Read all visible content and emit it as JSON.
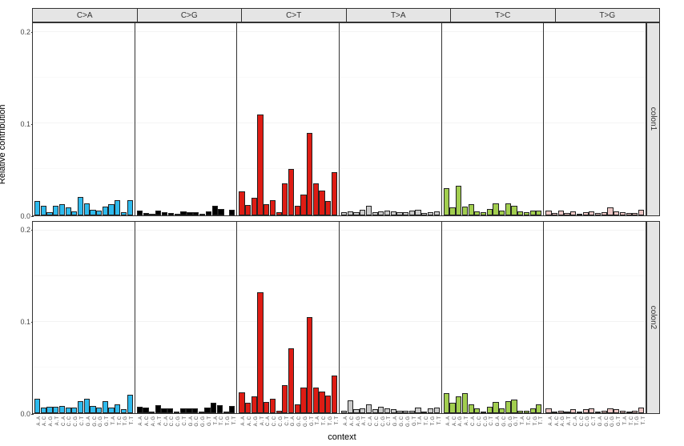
{
  "title": {
    "y_label": "Relative contribution",
    "x_label": "context"
  },
  "layout": {
    "ylim": [
      0,
      0.21
    ],
    "yticks": [
      0.0,
      0.1,
      0.2
    ],
    "grid_major_color": "#f3f3f3",
    "grid_minor_color": "#f9f9f9",
    "background_color": "#ffffff",
    "panel_border": "#333333",
    "strip_background": "#e5e5e5",
    "bar_border": "#222222"
  },
  "x_categories": [
    "A.A",
    "A.C",
    "A.G",
    "A.T",
    "C.A",
    "C.C",
    "C.G",
    "C.T",
    "G.A",
    "G.C",
    "G.G",
    "G.T",
    "T.A",
    "T.C",
    "T.G",
    "T.T"
  ],
  "col_facets": [
    {
      "label": "C>A",
      "color": "#2ebaed"
    },
    {
      "label": "C>G",
      "color": "#000000"
    },
    {
      "label": "C>T",
      "color": "#de1c14"
    },
    {
      "label": "T>A",
      "color": "#cacaca"
    },
    {
      "label": "T>C",
      "color": "#a2ce4f"
    },
    {
      "label": "T>G",
      "color": "#ecc6c4"
    }
  ],
  "row_facets": [
    {
      "label": "colon1"
    },
    {
      "label": "colon2"
    }
  ],
  "data": {
    "colon1": {
      "C>A": [
        0.015,
        0.01,
        0.003,
        0.01,
        0.012,
        0.008,
        0.004,
        0.02,
        0.013,
        0.006,
        0.005,
        0.009,
        0.012,
        0.016,
        0.003,
        0.016
      ],
      "C>G": [
        0.005,
        0.002,
        0.001,
        0.005,
        0.003,
        0.002,
        0.001,
        0.004,
        0.003,
        0.003,
        0.001,
        0.004,
        0.01,
        0.007,
        0.0,
        0.006
      ],
      "C>T": [
        0.026,
        0.011,
        0.019,
        0.11,
        0.012,
        0.016,
        0.003,
        0.035,
        0.05,
        0.01,
        0.022,
        0.09,
        0.035,
        0.027,
        0.015,
        0.047
      ],
      "T>A": [
        0.003,
        0.004,
        0.003,
        0.006,
        0.01,
        0.003,
        0.004,
        0.005,
        0.004,
        0.003,
        0.003,
        0.005,
        0.006,
        0.002,
        0.003,
        0.004
      ],
      "T>C": [
        0.029,
        0.008,
        0.032,
        0.009,
        0.012,
        0.004,
        0.003,
        0.007,
        0.013,
        0.005,
        0.013,
        0.01,
        0.004,
        0.003,
        0.005,
        0.005
      ],
      "T>G": [
        0.005,
        0.002,
        0.005,
        0.002,
        0.004,
        0.001,
        0.003,
        0.004,
        0.002,
        0.003,
        0.008,
        0.004,
        0.003,
        0.002,
        0.002,
        0.006
      ]
    },
    "colon2": {
      "C>A": [
        0.016,
        0.006,
        0.007,
        0.007,
        0.008,
        0.006,
        0.006,
        0.013,
        0.016,
        0.008,
        0.006,
        0.013,
        0.006,
        0.01,
        0.004,
        0.02
      ],
      "C>G": [
        0.007,
        0.006,
        0.002,
        0.009,
        0.005,
        0.005,
        0.001,
        0.005,
        0.005,
        0.005,
        0.001,
        0.006,
        0.011,
        0.009,
        0.001,
        0.008
      ],
      "C>T": [
        0.023,
        0.011,
        0.018,
        0.132,
        0.012,
        0.016,
        0.003,
        0.031,
        0.071,
        0.01,
        0.028,
        0.105,
        0.028,
        0.024,
        0.019,
        0.041
      ],
      "T>A": [
        0.003,
        0.014,
        0.004,
        0.005,
        0.01,
        0.004,
        0.007,
        0.005,
        0.004,
        0.003,
        0.003,
        0.003,
        0.006,
        0.002,
        0.005,
        0.006
      ],
      "T>C": [
        0.022,
        0.011,
        0.018,
        0.022,
        0.01,
        0.005,
        0.002,
        0.007,
        0.012,
        0.005,
        0.013,
        0.015,
        0.003,
        0.003,
        0.005,
        0.01
      ],
      "T>G": [
        0.005,
        0.002,
        0.003,
        0.002,
        0.004,
        0.001,
        0.004,
        0.005,
        0.002,
        0.003,
        0.005,
        0.004,
        0.003,
        0.002,
        0.003,
        0.006
      ]
    }
  }
}
